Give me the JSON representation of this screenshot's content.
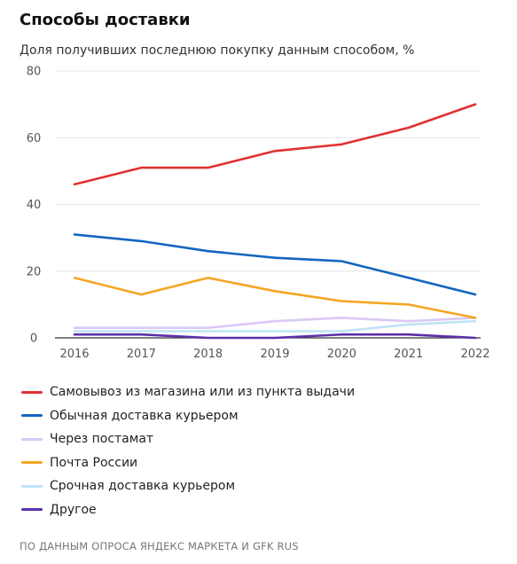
{
  "title": "Способы доставки",
  "subtitle": "Доля получивших последнюю покупку данным способом, %",
  "source": "ПО ДАННЫМ ОПРОСА ЯНДЕКС МАРКЕТА И GFK RUS",
  "chart_data": {
    "type": "line",
    "title": "Способы доставки",
    "subtitle": "Доля получивших последнюю покупку данным способом, %",
    "categories": [
      "2016",
      "2017",
      "2018",
      "2019",
      "2020",
      "2021",
      "2022"
    ],
    "ylim": [
      0,
      80
    ],
    "yticks": [
      0,
      20,
      40,
      60,
      80
    ],
    "grid": true,
    "legend_position": "bottom",
    "series": [
      {
        "name": "Самовывоз из магазина или из пункта выдачи",
        "color": "#e03131",
        "values": [
          46,
          51,
          51,
          56,
          58,
          63,
          70
        ]
      },
      {
        "name": "Обычная доставка курьером",
        "color": "#1565c0",
        "values": [
          31,
          29,
          26,
          24,
          23,
          18,
          13
        ]
      },
      {
        "name": "Через постамат",
        "color": "#d9c8f5",
        "values": [
          3,
          3,
          3,
          5,
          6,
          5,
          6
        ]
      },
      {
        "name": "Почта России",
        "color": "#f5a623",
        "values": [
          18,
          13,
          18,
          14,
          11,
          10,
          6
        ]
      },
      {
        "name": "Срочная доставка курьером",
        "color": "#bfe3f7",
        "values": [
          2,
          2,
          2,
          2,
          2,
          4,
          5
        ]
      },
      {
        "name": "Другое",
        "color": "#5b2fa8",
        "values": [
          1,
          1,
          0,
          0,
          1,
          1,
          0
        ]
      }
    ]
  }
}
